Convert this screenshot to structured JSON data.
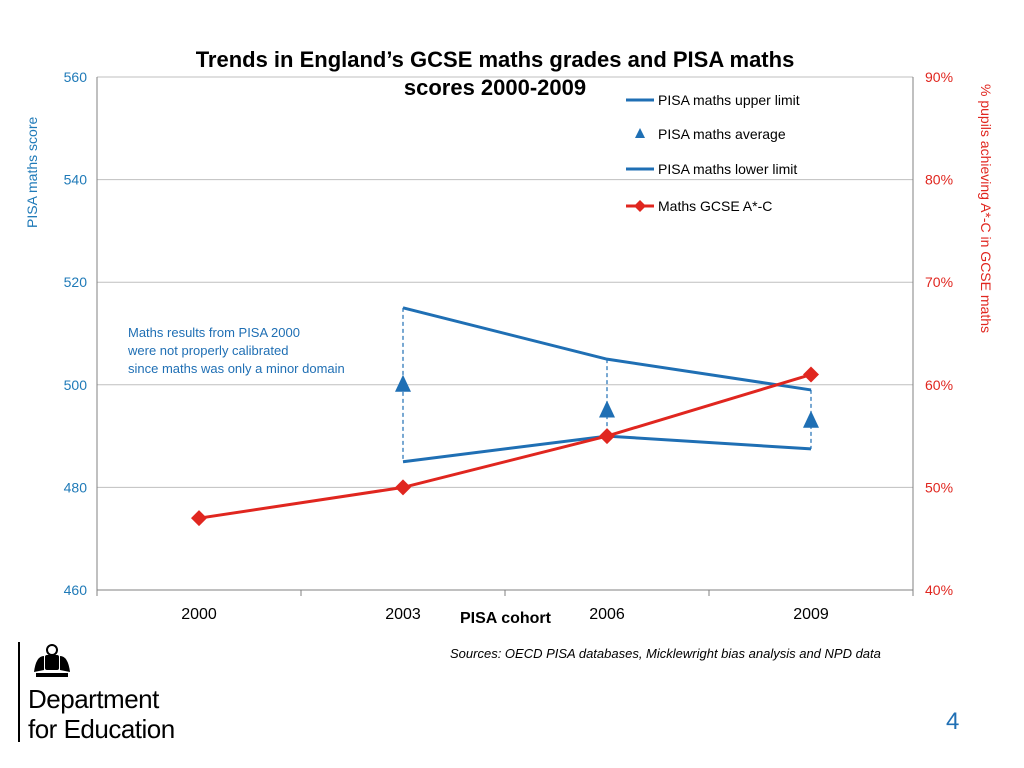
{
  "slide": {
    "title_line1": "Trends in England’s GCSE maths grades and PISA maths",
    "title_line2": "scores 2000-2009",
    "sources": "Sources: OECD PISA databases, Micklewright bias analysis and NPD data",
    "page_number": "4",
    "logo": {
      "line1": "Department",
      "line2": "for Education",
      "icon": "royal-crest-icon"
    },
    "annotation": [
      "Maths results  from PISA 2000",
      "were not properly calibrated",
      "since maths was only a minor domain"
    ]
  },
  "colors": {
    "pisa": "#1f6fb4",
    "pisa_axis": "#1f7ab8",
    "gcse": "#e0261f",
    "grid": "#bfbfbf"
  },
  "chart_data": {
    "type": "line",
    "title": "Trends in England’s GCSE maths grades and PISA maths scores 2000-2009",
    "xlabel": "PISA cohort",
    "ylabel_left": "PISA maths score",
    "ylabel_right": "% pupils achieving A*-C in GCSE maths",
    "categories": [
      "2000",
      "2003",
      "2006",
      "2009"
    ],
    "y_left": {
      "min": 460,
      "max": 560,
      "ticks": [
        "460",
        "480",
        "500",
        "520",
        "540",
        "560"
      ]
    },
    "y_right": {
      "min": 40,
      "max": 90,
      "ticks": [
        "40%",
        "50%",
        "60%",
        "70%",
        "80%",
        "90%"
      ]
    },
    "grid": true,
    "legend_position": "top-right",
    "series": [
      {
        "name": "PISA maths upper limit",
        "axis": "left",
        "marker": "none",
        "values": [
          null,
          515,
          505,
          499
        ]
      },
      {
        "name": "PISA maths average",
        "axis": "left",
        "marker": "triangle",
        "values": [
          null,
          500,
          495,
          493
        ]
      },
      {
        "name": "PISA maths lower limit",
        "axis": "left",
        "marker": "none",
        "values": [
          null,
          485,
          490,
          487.5
        ]
      },
      {
        "name": "Maths GCSE A*-C",
        "axis": "right",
        "marker": "diamond",
        "values": [
          47,
          50,
          55,
          61
        ]
      }
    ]
  }
}
